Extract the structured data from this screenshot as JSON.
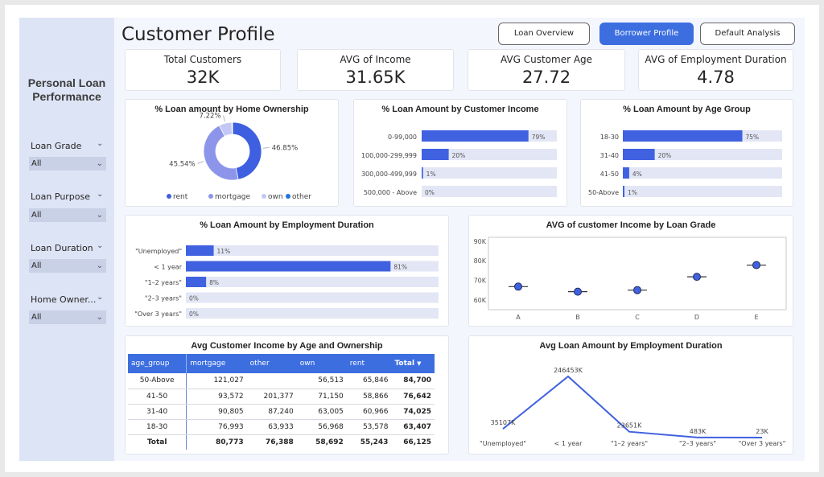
{
  "sidebar": {
    "title_line1": "Personal Loan",
    "title_line2": "Performance",
    "filters": [
      {
        "label": "Loan Grade",
        "value": "All"
      },
      {
        "label": "Loan Purpose",
        "value": "All"
      },
      {
        "label": "Loan Duration",
        "value": "All"
      },
      {
        "label": "Home Owner...",
        "value": "All"
      }
    ]
  },
  "header": {
    "title": "Customer Profile",
    "nav": [
      {
        "label": "Loan Overview",
        "active": false
      },
      {
        "label": "Borrower Profile",
        "active": true
      },
      {
        "label": "Default Analysis",
        "active": false
      }
    ]
  },
  "kpis": [
    {
      "label": "Total Customers",
      "value": "32K"
    },
    {
      "label": "AVG of Income",
      "value": "31.65K"
    },
    {
      "label": "AVG Customer Age",
      "value": "27.72"
    },
    {
      "label": "AVG of Employment Duration",
      "value": "4.78"
    }
  ],
  "colors": {
    "accent": "#3c6ee0",
    "bar": "#4061e0",
    "track": "#e3e6f5",
    "rent": "#3d5fe0",
    "mortgage": "#8c95ea",
    "own": "#c3c7f3",
    "other": "#2176d6"
  },
  "chart_data": [
    {
      "id": "home-ownership",
      "type": "pie",
      "title": "% Loan amount by Home Ownership",
      "slices": [
        {
          "name": "rent",
          "value": 46.85,
          "label": "46.85%"
        },
        {
          "name": "mortgage",
          "value": 45.54,
          "label": "45.54%"
        },
        {
          "name": "own",
          "value": 7.22,
          "label": "7.22%"
        },
        {
          "name": "other",
          "value": 0.39,
          "label": ""
        }
      ],
      "legend": [
        "rent",
        "mortgage",
        "own",
        "other"
      ]
    },
    {
      "id": "customer-income",
      "type": "bar",
      "title": "% Loan Amount by Customer Income",
      "categories": [
        "0-99,000",
        "100,000-299,999",
        "300,000-499,999",
        "500,000 - Above"
      ],
      "values": [
        79,
        20,
        1,
        0
      ],
      "labels": [
        "79%",
        "20%",
        "1%",
        "0%"
      ]
    },
    {
      "id": "age-group",
      "type": "bar",
      "title": "% Loan Amount by Age Group",
      "categories": [
        "18-30",
        "31-40",
        "41-50",
        "50-Above"
      ],
      "values": [
        75,
        20,
        4,
        1
      ],
      "labels": [
        "75%",
        "20%",
        "4%",
        "1%"
      ]
    },
    {
      "id": "employment-duration",
      "type": "bar",
      "title": "% Loan Amount by Employment Duration",
      "categories": [
        "\"Unemployed\"",
        "< 1 year",
        "\"1–2 years\"",
        "\"2–3 years\"",
        "\"Over 3 years\""
      ],
      "values": [
        11,
        81,
        8,
        0,
        0
      ],
      "labels": [
        "11%",
        "81%",
        "8%",
        "0%",
        "0%"
      ]
    },
    {
      "id": "income-by-grade",
      "type": "scatter",
      "title": "AVG of customer Income by Loan Grade",
      "categories": [
        "A",
        "B",
        "C",
        "D",
        "E"
      ],
      "values": [
        66800,
        64200,
        65000,
        71800,
        77800
      ],
      "yticks": [
        "60K",
        "70K",
        "80K",
        "90K"
      ],
      "ytick_values": [
        60000,
        70000,
        80000,
        90000
      ],
      "ylim": [
        55000,
        92000
      ]
    },
    {
      "id": "income-matrix",
      "type": "table",
      "title": "Avg Customer Income by Age and Ownership",
      "columns": [
        "age_group",
        "mortgage",
        "other",
        "own",
        "rent",
        "Total"
      ],
      "rows": [
        [
          "50-Above",
          "121,027",
          "",
          "56,513",
          "65,846",
          "84,700"
        ],
        [
          "41-50",
          "93,572",
          "201,377",
          "71,150",
          "58,866",
          "76,642"
        ],
        [
          "31-40",
          "90,805",
          "87,240",
          "63,005",
          "60,966",
          "74,025"
        ],
        [
          "18-30",
          "76,993",
          "63,933",
          "56,968",
          "53,578",
          "63,407"
        ]
      ],
      "total": [
        "Total",
        "80,773",
        "76,388",
        "58,692",
        "55,243",
        "66,125"
      ]
    },
    {
      "id": "loan-by-employment",
      "type": "line",
      "title": "Avg Loan Amount by Employment Duration",
      "categories": [
        "\"Unemployed\"",
        "< 1 year",
        "\"1–2 years\"",
        "\"2–3 years\"",
        "\"Over 3 years\""
      ],
      "values": [
        35107,
        246453,
        23651,
        483,
        23
      ],
      "labels": [
        "35107K",
        "246453K",
        "23651K",
        "483K",
        "23K"
      ]
    }
  ]
}
